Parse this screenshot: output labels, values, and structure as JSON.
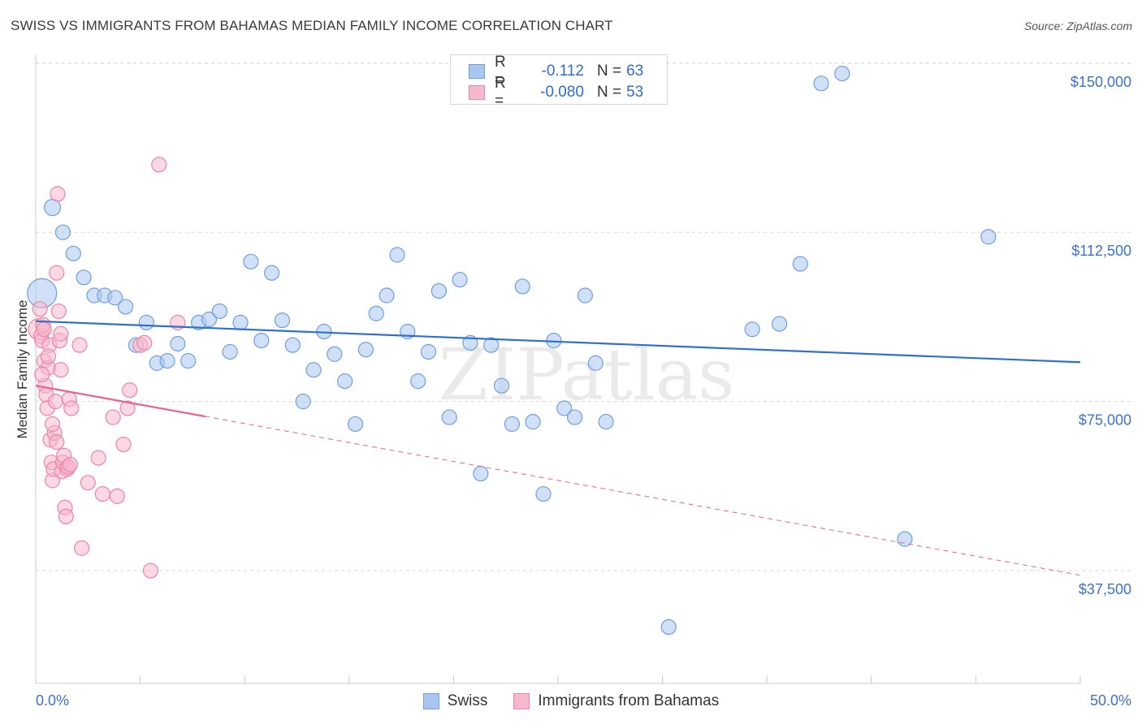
{
  "title": "SWISS VS IMMIGRANTS FROM BAHAMAS MEDIAN FAMILY INCOME CORRELATION CHART",
  "source": "Source: ZipAtlas.com",
  "watermark": "ZIPatlas",
  "legend_top": [
    {
      "r_label": "R =",
      "r_value": "-0.112",
      "n_label": "N =",
      "n_value": "63"
    },
    {
      "r_label": "R =",
      "r_value": "-0.080",
      "n_label": "N =",
      "n_value": "53"
    }
  ],
  "legend_bottom": [
    "Swiss",
    "Immigrants from Bahamas"
  ],
  "colors": {
    "swiss_fill": "#a9c6f0",
    "swiss_stroke": "#6f9fe0",
    "swiss_line": "#2f6fd0",
    "bahamas_fill": "#f7b8cc",
    "bahamas_stroke": "#ec85a6",
    "bahamas_line": "#e8628f",
    "tick_text": "#3b73c9",
    "grid": "#d9d9d9"
  },
  "chart_data": {
    "type": "scatter",
    "title": "SWISS VS IMMIGRANTS FROM BAHAMAS MEDIAN FAMILY INCOME CORRELATION CHART",
    "xlabel": "",
    "ylabel": "Median Family Income",
    "xlim": [
      0,
      50
    ],
    "ylim": [
      12500,
      155000
    ],
    "x_tick_labels": [
      "0.0%",
      "50.0%"
    ],
    "y_ticks": [
      37500,
      75000,
      112500,
      150000
    ],
    "y_tick_labels": [
      "$37,500",
      "$75,000",
      "$112,500",
      "$150,000"
    ],
    "grid": true,
    "series": [
      {
        "name": "Swiss",
        "r": -0.112,
        "n": 63,
        "trend": {
          "x": [
            0,
            50
          ],
          "y": [
            92800,
            83700
          ],
          "dashed_from": null
        },
        "points": [
          [
            0.3,
            99000,
            18
          ],
          [
            0.8,
            118000,
            10
          ],
          [
            1.3,
            112500,
            9
          ],
          [
            1.8,
            107800,
            9
          ],
          [
            2.3,
            102500,
            9
          ],
          [
            2.8,
            98500,
            9
          ],
          [
            3.3,
            98500,
            9
          ],
          [
            3.8,
            98000,
            9
          ],
          [
            4.3,
            96000,
            9
          ],
          [
            4.8,
            87500,
            9
          ],
          [
            5.3,
            92500,
            9
          ],
          [
            5.8,
            83500,
            9
          ],
          [
            6.3,
            84000,
            9
          ],
          [
            6.8,
            87800,
            9
          ],
          [
            7.3,
            84000,
            9
          ],
          [
            7.8,
            92500,
            9
          ],
          [
            8.3,
            93200,
            9
          ],
          [
            8.8,
            95000,
            9
          ],
          [
            9.3,
            86000,
            9
          ],
          [
            9.8,
            92500,
            9
          ],
          [
            10.3,
            106000,
            9
          ],
          [
            10.8,
            88500,
            9
          ],
          [
            11.3,
            103500,
            9
          ],
          [
            11.8,
            93000,
            9
          ],
          [
            12.3,
            87500,
            9
          ],
          [
            12.8,
            75000,
            9
          ],
          [
            13.3,
            82000,
            9
          ],
          [
            13.8,
            90500,
            9
          ],
          [
            14.3,
            85500,
            9
          ],
          [
            14.8,
            79500,
            9
          ],
          [
            15.3,
            70000,
            9
          ],
          [
            15.8,
            86500,
            9
          ],
          [
            16.3,
            94500,
            9
          ],
          [
            16.8,
            98500,
            9
          ],
          [
            17.3,
            107500,
            9
          ],
          [
            17.8,
            90500,
            9
          ],
          [
            18.3,
            79500,
            9
          ],
          [
            18.8,
            86000,
            9
          ],
          [
            19.3,
            99500,
            9
          ],
          [
            19.8,
            71500,
            9
          ],
          [
            20.3,
            102000,
            9
          ],
          [
            20.8,
            88000,
            9
          ],
          [
            21.3,
            59000,
            9
          ],
          [
            21.8,
            87500,
            9
          ],
          [
            22.3,
            78500,
            9
          ],
          [
            22.8,
            70000,
            9
          ],
          [
            23.3,
            100500,
            9
          ],
          [
            23.8,
            70500,
            9
          ],
          [
            24.3,
            54500,
            9
          ],
          [
            24.8,
            88500,
            9
          ],
          [
            25.3,
            73500,
            9
          ],
          [
            25.8,
            71500,
            9
          ],
          [
            26.3,
            98500,
            9
          ],
          [
            26.8,
            83500,
            9
          ],
          [
            27.3,
            70500,
            9
          ],
          [
            30.3,
            25000,
            9
          ],
          [
            34.3,
            91000,
            9
          ],
          [
            35.6,
            92200,
            9
          ],
          [
            36.6,
            105500,
            9
          ],
          [
            37.6,
            145500,
            9
          ],
          [
            38.6,
            147700,
            9
          ],
          [
            41.6,
            44500,
            9
          ],
          [
            45.6,
            111500,
            9
          ]
        ]
      },
      {
        "name": "Immigrants from Bahamas",
        "r": -0.08,
        "n": 53,
        "trend": {
          "x": [
            0,
            50
          ],
          "y": [
            78500,
            36500
          ],
          "dashed_from": 8.1
        },
        "points": [
          [
            0.15,
            91000,
            13
          ],
          [
            0.2,
            95500,
            9
          ],
          [
            0.25,
            89500,
            9
          ],
          [
            0.3,
            88500,
            9
          ],
          [
            0.35,
            92000,
            9
          ],
          [
            0.4,
            84000,
            9
          ],
          [
            0.45,
            78500,
            9
          ],
          [
            0.5,
            76500,
            9
          ],
          [
            0.55,
            73500,
            9
          ],
          [
            0.6,
            82500,
            9
          ],
          [
            0.65,
            87500,
            9
          ],
          [
            0.7,
            66500,
            9
          ],
          [
            0.75,
            61500,
            9
          ],
          [
            0.8,
            57500,
            9
          ],
          [
            0.85,
            60000,
            9
          ],
          [
            0.9,
            68000,
            9
          ],
          [
            0.95,
            75000,
            9
          ],
          [
            1.0,
            103500,
            9
          ],
          [
            1.05,
            121000,
            9
          ],
          [
            1.1,
            95000,
            9
          ],
          [
            1.15,
            88500,
            9
          ],
          [
            1.2,
            90000,
            9
          ],
          [
            1.25,
            59500,
            9
          ],
          [
            1.3,
            61500,
            9
          ],
          [
            1.35,
            63000,
            9
          ],
          [
            1.4,
            51500,
            9
          ],
          [
            1.45,
            49500,
            9
          ],
          [
            1.5,
            60000,
            9
          ],
          [
            1.55,
            60500,
            9
          ],
          [
            1.6,
            75500,
            9
          ],
          [
            1.65,
            61000,
            9
          ],
          [
            1.7,
            73500,
            9
          ],
          [
            2.1,
            87500,
            9
          ],
          [
            2.2,
            42500,
            9
          ],
          [
            3.0,
            62500,
            9
          ],
          [
            3.2,
            54500,
            9
          ],
          [
            3.7,
            71500,
            9
          ],
          [
            3.9,
            54000,
            9
          ],
          [
            4.2,
            65500,
            9
          ],
          [
            4.4,
            73500,
            9
          ],
          [
            4.5,
            77500,
            9
          ],
          [
            5.0,
            87500,
            9
          ],
          [
            5.2,
            88000,
            9
          ],
          [
            5.5,
            37500,
            9
          ],
          [
            5.9,
            127500,
            9
          ],
          [
            6.8,
            92500,
            9
          ],
          [
            0.6,
            85000,
            9
          ],
          [
            0.8,
            70000,
            9
          ],
          [
            1.0,
            66000,
            9
          ],
          [
            0.4,
            91000,
            9
          ],
          [
            0.3,
            81000,
            9
          ],
          [
            1.2,
            82000,
            9
          ],
          [
            2.5,
            57000,
            9
          ]
        ]
      }
    ]
  }
}
